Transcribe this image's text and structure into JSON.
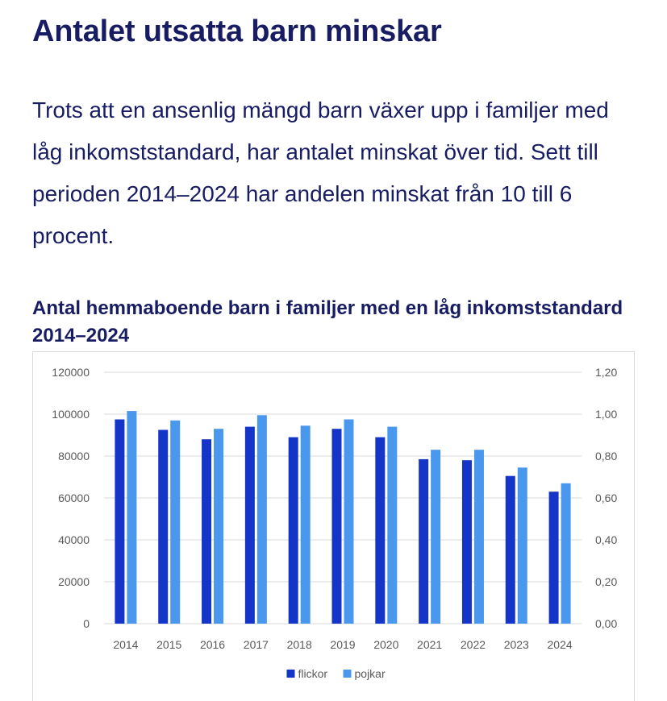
{
  "page": {
    "title": "Antalet utsatta barn minskar",
    "paragraph": "Trots att en ansenlig mängd barn växer upp i familjer med låg inkomststandard, har antalet minskat över tid. Sett till perioden 2014–2024 har andelen minskat från 10 till 6 procent."
  },
  "chart_data": {
    "type": "bar",
    "title": "Antal hemmaboende barn i familjer med en låg inkomststandard 2014–2024",
    "categories": [
      "2014",
      "2015",
      "2016",
      "2017",
      "2018",
      "2019",
      "2020",
      "2021",
      "2022",
      "2023",
      "2024"
    ],
    "series": [
      {
        "name": "flickor",
        "color": "#1534c8",
        "values": [
          97500,
          92500,
          88000,
          94000,
          89000,
          93000,
          89000,
          78500,
          78000,
          70500,
          63000
        ]
      },
      {
        "name": "pojkar",
        "color": "#4a97ee",
        "values": [
          101500,
          97000,
          93000,
          99500,
          94500,
          97500,
          94000,
          83000,
          83000,
          74500,
          67000
        ]
      }
    ],
    "ylim": [
      0,
      120000
    ],
    "y_ticks": [
      "0",
      "20000",
      "40000",
      "60000",
      "80000",
      "100000",
      "120000"
    ],
    "y2lim": [
      0,
      1.2
    ],
    "y2_ticks": [
      "0,00",
      "0,20",
      "0,40",
      "0,60",
      "0,80",
      "1,00",
      "1,20"
    ],
    "grid": true,
    "legend_position": "bottom",
    "xlabel": "",
    "ylabel": ""
  }
}
